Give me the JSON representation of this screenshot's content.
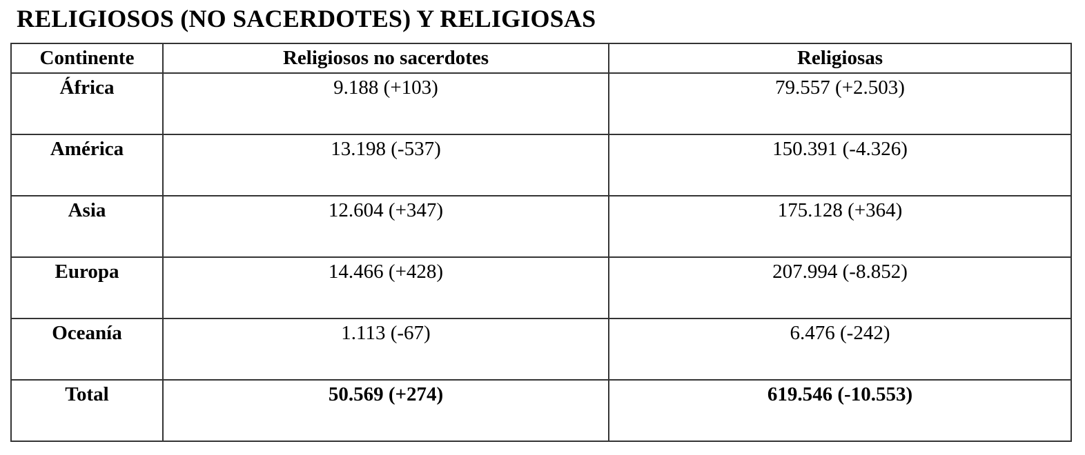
{
  "title": "RELIGIOSOS (NO SACERDOTES) Y RELIGIOSAS",
  "table": {
    "headers": {
      "continent": "Continente",
      "religiosos": "Religiosos no sacerdotes",
      "religiosas": "Religiosas"
    },
    "rows": [
      {
        "continent": "África",
        "religiosos": "9.188 (+103)",
        "religiosas": "79.557 (+2.503)"
      },
      {
        "continent": "América",
        "religiosos": "13.198 (-537)",
        "religiosas": "150.391 (-4.326)"
      },
      {
        "continent": "Asia",
        "religiosos": "12.604 (+347)",
        "religiosas": "175.128 (+364)"
      },
      {
        "continent": "Europa",
        "religiosos": "14.466 (+428)",
        "religiosas": "207.994 (-8.852)"
      },
      {
        "continent": "Oceanía",
        "religiosos": "1.113 (-67)",
        "religiosas": "6.476 (-242)"
      },
      {
        "continent": "Total",
        "religiosos": "50.569 (+274)",
        "religiosas": "619.546 (-10.553)"
      }
    ]
  }
}
